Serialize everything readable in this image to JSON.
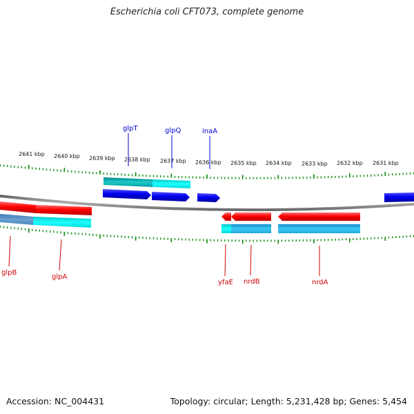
{
  "header": {
    "title": "Escherichia coli CFT073, complete genome"
  },
  "footer": {
    "accession": "Accession: NC_004431",
    "summary": "Topology: circular; Length: 5,231,428 bp; Genes: 5,454"
  },
  "colors": {
    "forward_gene": "#0000ee",
    "reverse_gene": "#ff0000",
    "forward_label": "#0000cc",
    "reverse_label": "#cc0000",
    "cds_forward_light": "#00ffff",
    "cds_forward_dark": "#00aaaa",
    "cds_reverse_light": "#33bbee",
    "tick": "#008800",
    "backbone": "#7a7a7a"
  },
  "ticks": [
    "2641 kbp",
    "2640 kbp",
    "2639 kbp",
    "2638 kbp",
    "2637 kbp",
    "2636 kbp",
    "2635 kbp",
    "2634 kbp",
    "2633 kbp",
    "2632 kbp",
    "2631 kbp"
  ],
  "genes": {
    "forward": [
      {
        "name": "glpT"
      },
      {
        "name": "glpQ"
      },
      {
        "name": "inaA"
      }
    ],
    "reverse": [
      {
        "name": "glpB"
      },
      {
        "name": "glpA"
      },
      {
        "name": "yfaE"
      },
      {
        "name": "nrdB"
      },
      {
        "name": "nrdA"
      }
    ]
  }
}
